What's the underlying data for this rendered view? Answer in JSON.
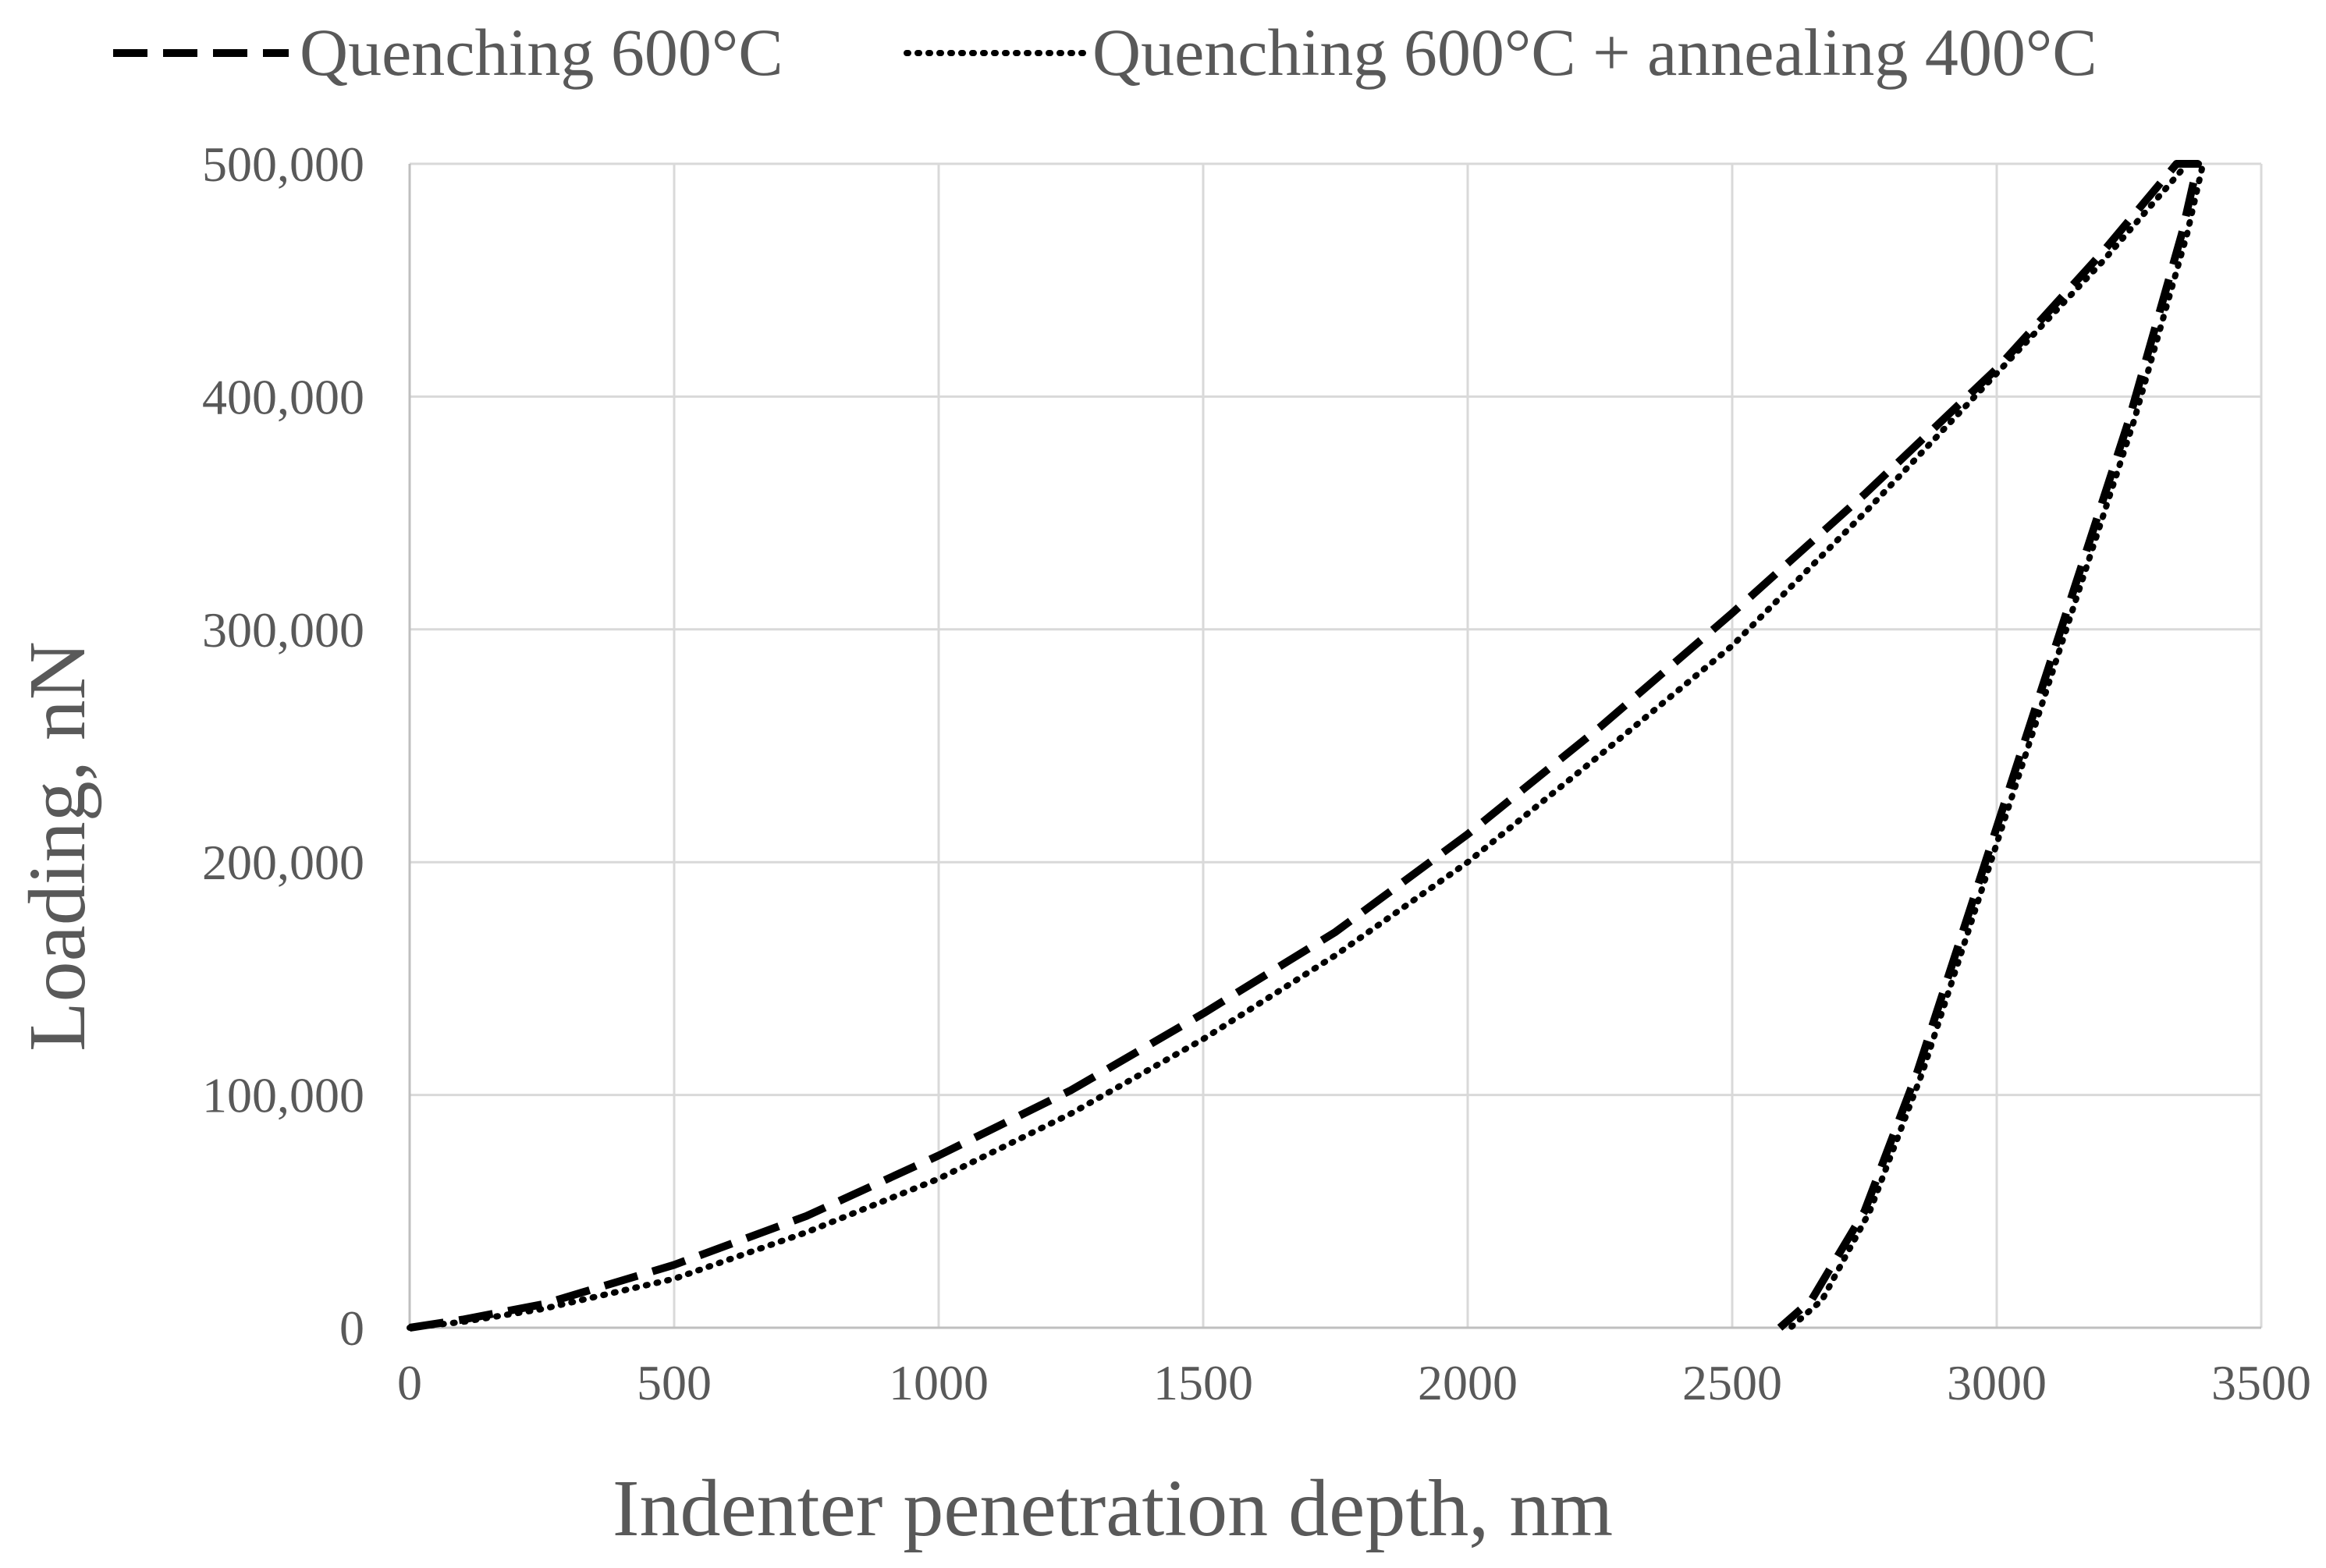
{
  "chart_data": {
    "type": "line",
    "title": "",
    "xlabel": "Indenter penetration depth, nm",
    "ylabel": "Loading, nN",
    "xlim": [
      0,
      3500
    ],
    "ylim": [
      0,
      500000
    ],
    "x_ticks": [
      0,
      500,
      1000,
      1500,
      2000,
      2500,
      3000,
      3500
    ],
    "x_tick_labels": [
      "0",
      "500",
      "1000",
      "1500",
      "2000",
      "2500",
      "3000",
      "3500"
    ],
    "y_ticks": [
      0,
      100000,
      200000,
      300000,
      400000,
      500000
    ],
    "y_tick_labels": [
      "0",
      "100,000",
      "200,000",
      "300,000",
      "400,000",
      "500,000"
    ],
    "grid": true,
    "legend_position": "top",
    "series": [
      {
        "name": "Quenching 600°C",
        "style": "dashed",
        "color": "#000000",
        "points": [
          [
            0,
            0
          ],
          [
            100,
            3500
          ],
          [
            250,
            10000
          ],
          [
            500,
            27000
          ],
          [
            750,
            48000
          ],
          [
            1000,
            74000
          ],
          [
            1250,
            102000
          ],
          [
            1500,
            135000
          ],
          [
            1750,
            170000
          ],
          [
            2000,
            212000
          ],
          [
            2250,
            258000
          ],
          [
            2500,
            307000
          ],
          [
            2750,
            358000
          ],
          [
            3000,
            412000
          ],
          [
            3200,
            462000
          ],
          [
            3340,
            500000
          ],
          [
            3380,
            500000
          ],
          [
            3350,
            470000
          ],
          [
            3250,
            390000
          ],
          [
            3150,
            320000
          ],
          [
            3050,
            250000
          ],
          [
            2950,
            180000
          ],
          [
            2850,
            110000
          ],
          [
            2750,
            50000
          ],
          [
            2650,
            12000
          ],
          [
            2590,
            0
          ]
        ]
      },
      {
        "name": "Quenching 600°C + annealing 400°C",
        "style": "dotted",
        "color": "#000000",
        "points": [
          [
            0,
            0
          ],
          [
            100,
            2500
          ],
          [
            250,
            8000
          ],
          [
            500,
            21000
          ],
          [
            750,
            41000
          ],
          [
            1000,
            64000
          ],
          [
            1250,
            92000
          ],
          [
            1500,
            124000
          ],
          [
            1750,
            160000
          ],
          [
            2000,
            200000
          ],
          [
            2250,
            246000
          ],
          [
            2500,
            293000
          ],
          [
            2750,
            350000
          ],
          [
            3000,
            410000
          ],
          [
            3200,
            458000
          ],
          [
            3360,
            500000
          ],
          [
            3390,
            500000
          ],
          [
            3360,
            470000
          ],
          [
            3260,
            390000
          ],
          [
            3160,
            320000
          ],
          [
            3060,
            250000
          ],
          [
            2960,
            180000
          ],
          [
            2860,
            110000
          ],
          [
            2760,
            50000
          ],
          [
            2670,
            12000
          ],
          [
            2610,
            0
          ]
        ]
      }
    ]
  }
}
